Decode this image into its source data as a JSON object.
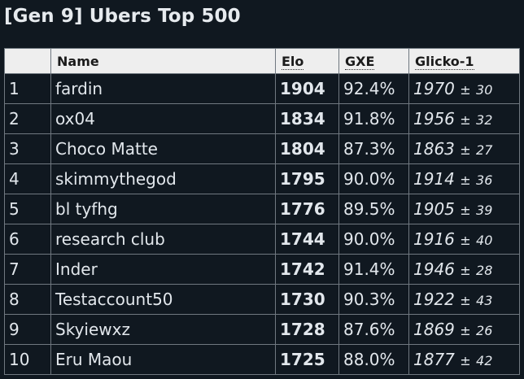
{
  "title": "[Gen 9] Ubers Top 500",
  "columns": {
    "rank": "",
    "name": "Name",
    "elo": "Elo",
    "gxe": "GXE",
    "glicko": "Glicko-1"
  },
  "rows": [
    {
      "rank": "1",
      "name": "fardin",
      "elo": "1904",
      "gxe": "92.4%",
      "glicko": "1970",
      "pm": "±",
      "dev": "30"
    },
    {
      "rank": "2",
      "name": "ox04",
      "elo": "1834",
      "gxe": "91.8%",
      "glicko": "1956",
      "pm": "±",
      "dev": "32"
    },
    {
      "rank": "3",
      "name": "Choco Matte",
      "elo": "1804",
      "gxe": "87.3%",
      "glicko": "1863",
      "pm": "±",
      "dev": "27"
    },
    {
      "rank": "4",
      "name": "skimmythegod",
      "elo": "1795",
      "gxe": "90.0%",
      "glicko": "1914",
      "pm": "±",
      "dev": "36"
    },
    {
      "rank": "5",
      "name": "bl tyfhg",
      "elo": "1776",
      "gxe": "89.5%",
      "glicko": "1905",
      "pm": "±",
      "dev": "39"
    },
    {
      "rank": "6",
      "name": "research club",
      "elo": "1744",
      "gxe": "90.0%",
      "glicko": "1916",
      "pm": "±",
      "dev": "40"
    },
    {
      "rank": "7",
      "name": "Inder",
      "elo": "1742",
      "gxe": "91.4%",
      "glicko": "1946",
      "pm": "±",
      "dev": "28"
    },
    {
      "rank": "8",
      "name": "Testaccount50",
      "elo": "1730",
      "gxe": "90.3%",
      "glicko": "1922",
      "pm": "±",
      "dev": "43"
    },
    {
      "rank": "9",
      "name": "Skyiewxz",
      "elo": "1728",
      "gxe": "87.6%",
      "glicko": "1869",
      "pm": "±",
      "dev": "26"
    },
    {
      "rank": "10",
      "name": "Eru Maou",
      "elo": "1725",
      "gxe": "88.0%",
      "glicko": "1877",
      "pm": "±",
      "dev": "42"
    }
  ]
}
